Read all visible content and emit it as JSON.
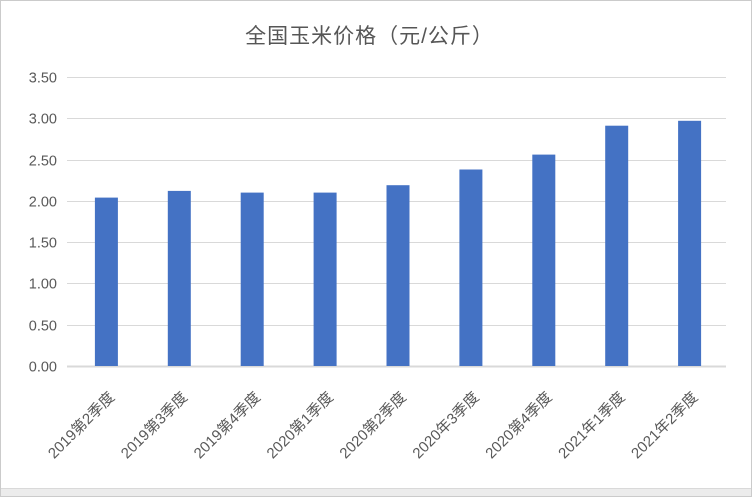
{
  "page": {
    "background_color": "#ffffff",
    "border_color": "#cbcbcb",
    "bottom_strip_color": "#ececec"
  },
  "chart_data": {
    "type": "bar",
    "title": "全国玉米价格（元/公斤）",
    "categories": [
      "2019第2季度",
      "2019第3季度",
      "2019第4季度",
      "2020第1季度",
      "2020第2季度",
      "2020年3季度",
      "2020第4季度",
      "2021年1季度",
      "2021年2季度"
    ],
    "values": [
      2.04,
      2.12,
      2.1,
      2.1,
      2.19,
      2.38,
      2.56,
      2.91,
      2.97
    ],
    "xlabel": "",
    "ylabel": "",
    "ylim": [
      0,
      3.5
    ],
    "ytick_step": 0.5,
    "ytick_labels": [
      "0.00",
      "0.50",
      "1.00",
      "1.50",
      "2.00",
      "2.50",
      "3.00",
      "3.50"
    ],
    "grid": true,
    "legend": false,
    "bar_color": "#4472C4",
    "grid_color": "#D9D9D9",
    "axis_color": "#D9D9D9",
    "tick_text_color": "#595959",
    "title_color": "#565656",
    "x_label_rotation_deg": -45
  }
}
